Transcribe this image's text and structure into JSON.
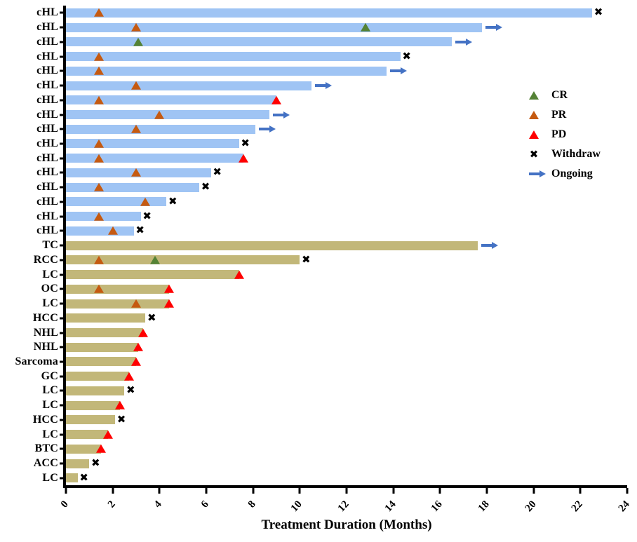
{
  "chart_data": {
    "type": "bar",
    "subtype": "swimmer-plot",
    "title": "",
    "xlabel": "Treatment Duration (Months)",
    "ylabel": "",
    "xlim": [
      0,
      24
    ],
    "xticks": [
      0,
      2,
      4,
      6,
      8,
      10,
      12,
      14,
      16,
      18,
      20,
      22,
      24
    ],
    "grid": false,
    "legend_position": "right-upper",
    "colors": {
      "chl_bar": "#9FC4F4",
      "other_bar": "#C2B779",
      "ongoing_arrow": "#4472C4",
      "cr": "#548235",
      "pr": "#C55A11",
      "pd": "#FF0000",
      "withdraw": "#000000"
    },
    "legend": [
      {
        "label": "CR",
        "marker": "triangle",
        "color": "#548235"
      },
      {
        "label": "PR",
        "marker": "triangle",
        "color": "#C55A11"
      },
      {
        "label": "PD",
        "marker": "triangle",
        "color": "#FF0000"
      },
      {
        "label": "Withdraw",
        "marker": "x",
        "color": "#000000"
      },
      {
        "label": "Ongoing",
        "marker": "arrow",
        "color": "#4472C4"
      }
    ],
    "withdraw_glyph": "✖",
    "rows": [
      {
        "label": "cHL",
        "duration": 22.5,
        "end": "withdraw",
        "markers": [
          {
            "type": "PR",
            "x": 1.4
          }
        ]
      },
      {
        "label": "cHL",
        "duration": 17.8,
        "end": "ongoing",
        "markers": [
          {
            "type": "PR",
            "x": 3.0
          },
          {
            "type": "CR",
            "x": 12.8
          }
        ]
      },
      {
        "label": "cHL",
        "duration": 16.5,
        "end": "ongoing",
        "markers": [
          {
            "type": "CR",
            "x": 3.1
          }
        ]
      },
      {
        "label": "cHL",
        "duration": 14.3,
        "end": "withdraw",
        "markers": [
          {
            "type": "PR",
            "x": 1.4
          }
        ]
      },
      {
        "label": "cHL",
        "duration": 13.7,
        "end": "ongoing",
        "markers": [
          {
            "type": "PR",
            "x": 1.4
          }
        ]
      },
      {
        "label": "cHL",
        "duration": 10.5,
        "end": "ongoing",
        "markers": [
          {
            "type": "PR",
            "x": 3.0
          }
        ]
      },
      {
        "label": "cHL",
        "duration": 9.0,
        "end": "pd",
        "markers": [
          {
            "type": "PR",
            "x": 1.4
          }
        ]
      },
      {
        "label": "cHL",
        "duration": 8.7,
        "end": "ongoing",
        "markers": [
          {
            "type": "PR",
            "x": 4.0
          }
        ]
      },
      {
        "label": "cHL",
        "duration": 8.1,
        "end": "ongoing",
        "markers": [
          {
            "type": "PR",
            "x": 3.0
          }
        ]
      },
      {
        "label": "cHL",
        "duration": 7.4,
        "end": "withdraw",
        "markers": [
          {
            "type": "PR",
            "x": 1.4
          }
        ]
      },
      {
        "label": "cHL",
        "duration": 7.6,
        "end": "pd",
        "markers": [
          {
            "type": "PR",
            "x": 1.4
          }
        ]
      },
      {
        "label": "cHL",
        "duration": 6.2,
        "end": "withdraw",
        "markers": [
          {
            "type": "PR",
            "x": 3.0
          }
        ]
      },
      {
        "label": "cHL",
        "duration": 5.7,
        "end": "withdraw",
        "markers": [
          {
            "type": "PR",
            "x": 1.4
          }
        ]
      },
      {
        "label": "cHL",
        "duration": 4.3,
        "end": "withdraw",
        "markers": [
          {
            "type": "PR",
            "x": 3.4
          }
        ]
      },
      {
        "label": "cHL",
        "duration": 3.2,
        "end": "withdraw",
        "markers": [
          {
            "type": "PR",
            "x": 1.4
          }
        ]
      },
      {
        "label": "cHL",
        "duration": 2.9,
        "end": "withdraw",
        "markers": [
          {
            "type": "PR",
            "x": 2.0
          }
        ]
      },
      {
        "label": "TC",
        "duration": 17.6,
        "end": "ongoing",
        "markers": []
      },
      {
        "label": "RCC",
        "duration": 10.0,
        "end": "withdraw",
        "markers": [
          {
            "type": "PR",
            "x": 1.4
          },
          {
            "type": "CR",
            "x": 3.8
          }
        ]
      },
      {
        "label": "LC",
        "duration": 7.4,
        "end": "pd",
        "markers": []
      },
      {
        "label": "OC",
        "duration": 4.4,
        "end": "pd",
        "markers": [
          {
            "type": "PR",
            "x": 1.4
          }
        ]
      },
      {
        "label": "LC",
        "duration": 4.4,
        "end": "pd",
        "markers": [
          {
            "type": "PR",
            "x": 3.0
          }
        ]
      },
      {
        "label": "HCC",
        "duration": 3.4,
        "end": "withdraw",
        "markers": []
      },
      {
        "label": "NHL",
        "duration": 3.3,
        "end": "pd",
        "markers": []
      },
      {
        "label": "NHL",
        "duration": 3.1,
        "end": "pd",
        "markers": []
      },
      {
        "label": "Sarcoma",
        "duration": 3.0,
        "end": "pd",
        "markers": []
      },
      {
        "label": "GC",
        "duration": 2.7,
        "end": "pd",
        "markers": []
      },
      {
        "label": "LC",
        "duration": 2.5,
        "end": "withdraw",
        "markers": []
      },
      {
        "label": "LC",
        "duration": 2.3,
        "end": "pd",
        "markers": []
      },
      {
        "label": "HCC",
        "duration": 2.1,
        "end": "withdraw",
        "markers": []
      },
      {
        "label": "LC",
        "duration": 1.8,
        "end": "pd",
        "markers": []
      },
      {
        "label": "BTC",
        "duration": 1.5,
        "end": "pd",
        "markers": []
      },
      {
        "label": "ACC",
        "duration": 1.0,
        "end": "withdraw",
        "markers": []
      },
      {
        "label": "LC",
        "duration": 0.5,
        "end": "withdraw",
        "markers": []
      }
    ]
  }
}
